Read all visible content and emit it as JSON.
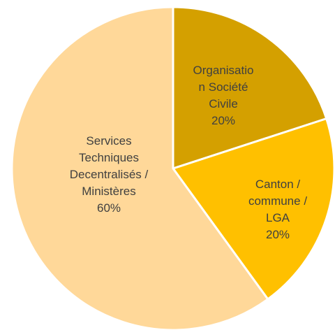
{
  "chart_data": {
    "type": "pie",
    "categories": [
      "Organisation Société Civile",
      "Canton / commune / LGA",
      "Services Techniques Decentralisés / Ministères"
    ],
    "values": [
      20,
      20,
      60
    ],
    "value_labels": [
      "20%",
      "20%",
      "60%"
    ],
    "colors": [
      "#d4a000",
      "#ffc000",
      "#ffd899"
    ]
  }
}
